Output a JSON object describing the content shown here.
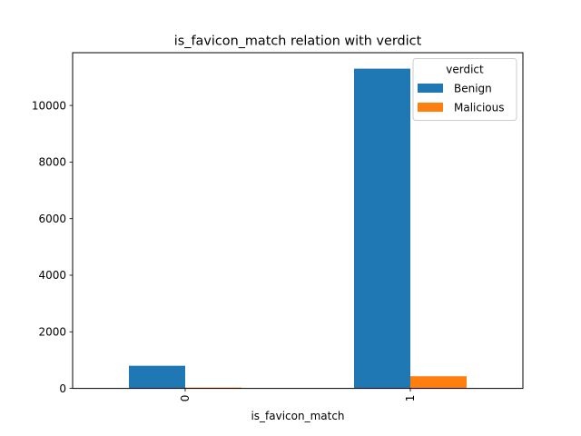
{
  "chart_data": {
    "type": "bar",
    "title": "is_favicon_match relation with verdict",
    "xlabel": "is_favicon_match",
    "ylabel": "",
    "categories": [
      "0",
      "1"
    ],
    "series": [
      {
        "name": "Benign",
        "values": [
          800,
          11300
        ],
        "color": "#1f77b4"
      },
      {
        "name": "Malicious",
        "values": [
          30,
          430
        ],
        "color": "#ff7f0e"
      }
    ],
    "ylim": [
      0,
      11865
    ],
    "yticks": [
      0,
      2000,
      4000,
      6000,
      8000,
      10000
    ],
    "legend": {
      "title": "verdict",
      "placement": "top-right"
    },
    "grid": false
  }
}
